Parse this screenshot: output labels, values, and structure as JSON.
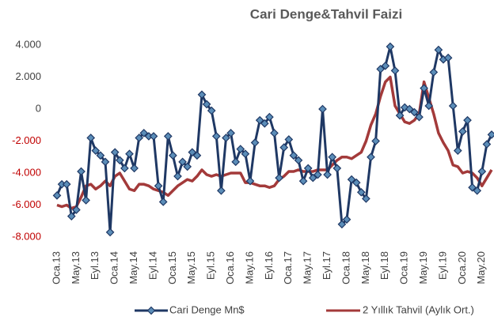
{
  "chart_data": {
    "type": "line",
    "title": "Cari Denge&Tahvil Faizi",
    "categories": [
      "Oca.13",
      null,
      null,
      null,
      "May.13",
      null,
      null,
      null,
      "Eyl.13",
      null,
      null,
      null,
      "Oca.14",
      null,
      null,
      null,
      "May.14",
      null,
      null,
      null,
      "Eyl.14",
      null,
      null,
      null,
      "Oca.15",
      null,
      null,
      null,
      "May.15",
      null,
      null,
      null,
      "Eyl.15",
      null,
      null,
      null,
      "Oca.16",
      null,
      null,
      null,
      "May.16",
      null,
      null,
      null,
      "Eyl.16",
      null,
      null,
      null,
      "Oca.17",
      null,
      null,
      null,
      "May.17",
      null,
      null,
      null,
      "Eyl.17",
      null,
      null,
      null,
      "Oca.18",
      null,
      null,
      null,
      "May.18",
      null,
      null,
      null,
      "Eyl.18",
      null,
      null,
      null,
      "Oca.19",
      null,
      null,
      null,
      "May.19",
      null,
      null,
      null,
      "Eyl.19",
      null,
      null,
      null,
      "Oca.20",
      null,
      null,
      null,
      "May.20",
      null,
      null
    ],
    "series": [
      {
        "name": "Cari Denge Mn$",
        "color": "#1f3864",
        "marker_color": "#5b8db8",
        "values": [
          -5400,
          -4700,
          -4700,
          -6700,
          -6300,
          -3900,
          -5700,
          -1800,
          -2600,
          -2900,
          -3300,
          -7700,
          -2700,
          -3200,
          -3700,
          -2800,
          -3700,
          -1800,
          -1500,
          -1700,
          -1700,
          -4800,
          -5800,
          -1700,
          -2900,
          -4200,
          -3300,
          -3600,
          -2700,
          -2900,
          900,
          300,
          -100,
          -1700,
          -5100,
          -1800,
          -1500,
          -3300,
          -2500,
          -2800,
          -4500,
          -2100,
          -700,
          -900,
          -500,
          -1500,
          -4300,
          -2400,
          -1900,
          -2900,
          -3200,
          -4500,
          -3700,
          -4300,
          -4100,
          0,
          -4100,
          -3000,
          -3700,
          -7200,
          -6900,
          -4400,
          -4600,
          -5200,
          -5600,
          -3000,
          -2000,
          2500,
          2700,
          3900,
          2400,
          -400,
          100,
          0,
          -200,
          -500,
          1300,
          200,
          2300,
          3700,
          3100,
          3200,
          200,
          -2600,
          -1400,
          -700,
          -4900,
          -5100,
          -3900,
          -2200,
          -1600
        ]
      },
      {
        "name": "2 Yıllık Tahvil (Aylık Ort.)",
        "color": "#a33a3a",
        "values": [
          -6000,
          -6100,
          -6000,
          -6200,
          -6100,
          -5500,
          -4800,
          -4700,
          -5000,
          -4800,
          -4500,
          -4800,
          -4200,
          -4000,
          -4500,
          -5000,
          -5100,
          -4700,
          -4700,
          -4800,
          -5000,
          -5100,
          -5200,
          -5400,
          -5100,
          -4800,
          -4600,
          -4400,
          -4500,
          -4200,
          -3800,
          -4100,
          -4200,
          -4100,
          -4200,
          -4100,
          -4000,
          -4000,
          -4000,
          -4600,
          -4600,
          -4700,
          -4800,
          -4800,
          -4900,
          -4800,
          -4400,
          -4200,
          -3900,
          -3900,
          -3800,
          -3900,
          -3900,
          -3900,
          -3800,
          -3800,
          -3800,
          -3500,
          -3200,
          -3000,
          -3000,
          -3100,
          -2900,
          -2700,
          -2000,
          -1000,
          -300,
          800,
          1700,
          2000,
          200,
          -300,
          -800,
          -900,
          -700,
          -300,
          1700,
          700,
          -300,
          -1500,
          -2100,
          -2600,
          -3500,
          -3600,
          -4000,
          -3900,
          -4000,
          -4300,
          -4800,
          -4300,
          -3800
        ]
      }
    ],
    "ylim": [
      -8000,
      4000
    ],
    "yticks": [
      {
        "value": 4000,
        "label": "4.000"
      },
      {
        "value": 2000,
        "label": "2.000"
      },
      0,
      {
        "value": -2000,
        "label": "-2.000"
      },
      {
        "value": -4000,
        "label": "-4.000"
      },
      {
        "value": -6000,
        "label": "-6.000"
      },
      {
        "value": -8000,
        "label": "-8.000"
      }
    ],
    "negative_tick_color": "#c00000",
    "legend": "bottom"
  }
}
